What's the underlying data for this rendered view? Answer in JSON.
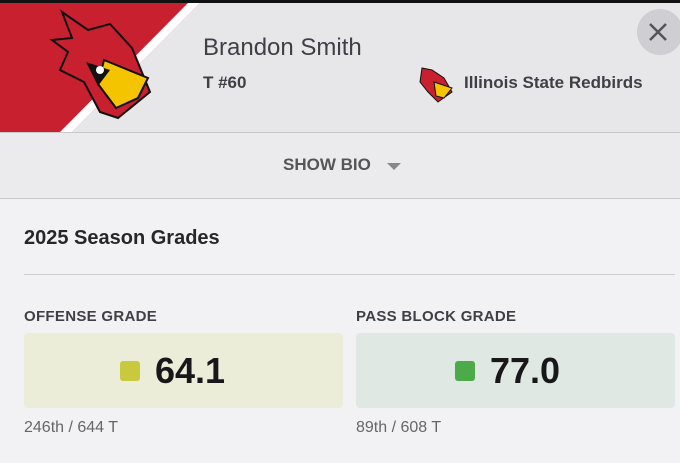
{
  "header": {
    "player_name": "Brandon Smith",
    "position_number": "T #60",
    "team": "Illinois State Redbirds"
  },
  "bio_toggle": "SHOW BIO",
  "season": {
    "title": "2025 Season Grades",
    "grades": [
      {
        "label": "OFFENSE GRADE",
        "value": "64.1",
        "rank": "246th / 644 T"
      },
      {
        "label": "PASS BLOCK GRADE",
        "value": "77.0",
        "rank": "89th / 608 T"
      }
    ]
  }
}
